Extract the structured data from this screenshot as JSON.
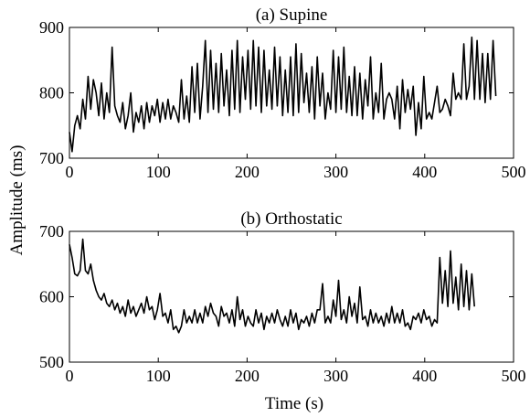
{
  "figure": {
    "ylabel": "Amplitude (ms)",
    "xlabel": "Time (s)"
  },
  "chart_data": [
    {
      "type": "line",
      "title": "(a) Supine",
      "xlim": [
        0,
        500
      ],
      "ylim": [
        700,
        900
      ],
      "xticks": [
        0,
        100,
        200,
        300,
        400,
        500
      ],
      "yticks": [
        700,
        800,
        900
      ],
      "grid": false,
      "series": [
        {
          "color": "#000000",
          "x": [
            0,
            3,
            6,
            9,
            12,
            15,
            18,
            21,
            24,
            27,
            30,
            33,
            36,
            39,
            42,
            45,
            48,
            51,
            54,
            57,
            60,
            63,
            66,
            69,
            72,
            75,
            78,
            81,
            84,
            87,
            90,
            93,
            96,
            99,
            102,
            105,
            108,
            111,
            114,
            117,
            120,
            123,
            126,
            129,
            132,
            135,
            138,
            141,
            144,
            147,
            150,
            153,
            156,
            159,
            162,
            165,
            168,
            171,
            174,
            177,
            180,
            183,
            186,
            189,
            192,
            195,
            198,
            201,
            204,
            207,
            210,
            213,
            216,
            219,
            222,
            225,
            228,
            231,
            234,
            237,
            240,
            243,
            246,
            249,
            252,
            255,
            258,
            261,
            264,
            267,
            270,
            273,
            276,
            279,
            282,
            285,
            288,
            291,
            294,
            297,
            300,
            303,
            306,
            309,
            312,
            315,
            318,
            321,
            324,
            327,
            330,
            333,
            336,
            339,
            342,
            345,
            348,
            351,
            354,
            357,
            360,
            363,
            366,
            369,
            372,
            375,
            378,
            381,
            384,
            387,
            390,
            393,
            396,
            399,
            402,
            405,
            408,
            411,
            414,
            417,
            420,
            423,
            426,
            429,
            432,
            435,
            438,
            441,
            444,
            447,
            450,
            453,
            456,
            459,
            462,
            465,
            468,
            471,
            474,
            477,
            480
          ],
          "y": [
            740,
            710,
            750,
            765,
            745,
            790,
            760,
            825,
            775,
            820,
            800,
            765,
            815,
            760,
            800,
            770,
            870,
            780,
            765,
            755,
            785,
            745,
            765,
            800,
            740,
            770,
            755,
            780,
            745,
            785,
            755,
            780,
            765,
            790,
            755,
            785,
            760,
            790,
            760,
            780,
            770,
            755,
            820,
            760,
            795,
            755,
            840,
            770,
            845,
            760,
            810,
            880,
            770,
            865,
            775,
            845,
            770,
            860,
            780,
            835,
            765,
            865,
            775,
            880,
            770,
            855,
            790,
            865,
            775,
            880,
            780,
            870,
            770,
            865,
            780,
            835,
            775,
            870,
            780,
            855,
            765,
            835,
            770,
            855,
            765,
            875,
            770,
            860,
            785,
            830,
            770,
            840,
            760,
            855,
            780,
            830,
            760,
            800,
            775,
            865,
            770,
            855,
            775,
            870,
            770,
            825,
            765,
            840,
            765,
            830,
            760,
            820,
            780,
            855,
            760,
            800,
            770,
            845,
            760,
            790,
            800,
            790,
            760,
            810,
            745,
            820,
            770,
            805,
            775,
            810,
            735,
            785,
            745,
            825,
            760,
            770,
            760,
            785,
            810,
            770,
            775,
            790,
            780,
            765,
            830,
            790,
            800,
            790,
            875,
            790,
            810,
            885,
            790,
            880,
            790,
            860,
            785,
            860,
            790,
            880,
            795
          ]
        }
      ]
    },
    {
      "type": "line",
      "title": "(b) Orthostatic",
      "xlim": [
        0,
        500
      ],
      "ylim": [
        500,
        700
      ],
      "xticks": [
        0,
        100,
        200,
        300,
        400,
        500
      ],
      "yticks": [
        500,
        600,
        700
      ],
      "grid": false,
      "series": [
        {
          "color": "#000000",
          "x": [
            0,
            3,
            6,
            9,
            12,
            15,
            18,
            21,
            24,
            27,
            30,
            33,
            36,
            39,
            42,
            45,
            48,
            51,
            54,
            57,
            60,
            63,
            66,
            69,
            72,
            75,
            78,
            81,
            84,
            87,
            90,
            93,
            96,
            99,
            102,
            105,
            108,
            111,
            114,
            117,
            120,
            123,
            126,
            129,
            132,
            135,
            138,
            141,
            144,
            147,
            150,
            153,
            156,
            159,
            162,
            165,
            168,
            171,
            174,
            177,
            180,
            183,
            186,
            189,
            192,
            195,
            198,
            201,
            204,
            207,
            210,
            213,
            216,
            219,
            222,
            225,
            228,
            231,
            234,
            237,
            240,
            243,
            246,
            249,
            252,
            255,
            258,
            261,
            264,
            267,
            270,
            273,
            276,
            279,
            282,
            285,
            288,
            291,
            294,
            297,
            300,
            303,
            306,
            309,
            312,
            315,
            318,
            321,
            324,
            327,
            330,
            333,
            336,
            339,
            342,
            345,
            348,
            351,
            354,
            357,
            360,
            363,
            366,
            369,
            372,
            375,
            378,
            381,
            384,
            387,
            390,
            393,
            396,
            399,
            402,
            405,
            408,
            411,
            414,
            417,
            420,
            423,
            426,
            429,
            432,
            435,
            438,
            441,
            444,
            447,
            450,
            453,
            456
          ],
          "y": [
            680,
            660,
            635,
            632,
            640,
            688,
            640,
            635,
            650,
            625,
            610,
            600,
            595,
            605,
            590,
            585,
            595,
            580,
            590,
            575,
            585,
            570,
            595,
            575,
            585,
            570,
            580,
            590,
            575,
            600,
            580,
            585,
            565,
            580,
            605,
            570,
            575,
            560,
            580,
            550,
            555,
            545,
            555,
            580,
            560,
            570,
            560,
            580,
            560,
            575,
            560,
            585,
            570,
            590,
            575,
            570,
            555,
            585,
            570,
            575,
            560,
            580,
            555,
            600,
            565,
            580,
            555,
            570,
            560,
            555,
            580,
            560,
            575,
            550,
            570,
            560,
            575,
            560,
            580,
            565,
            555,
            570,
            555,
            580,
            560,
            575,
            550,
            565,
            560,
            570,
            555,
            575,
            560,
            580,
            580,
            620,
            560,
            570,
            560,
            595,
            570,
            625,
            565,
            580,
            560,
            600,
            570,
            590,
            560,
            615,
            565,
            570,
            555,
            580,
            560,
            575,
            560,
            570,
            555,
            575,
            560,
            585,
            560,
            575,
            560,
            580,
            555,
            560,
            550,
            570,
            565,
            575,
            560,
            580,
            565,
            570,
            555,
            565,
            560,
            660,
            590,
            640,
            585,
            670,
            590,
            630,
            580,
            650,
            585,
            640,
            580,
            635,
            585
          ]
        }
      ]
    }
  ]
}
